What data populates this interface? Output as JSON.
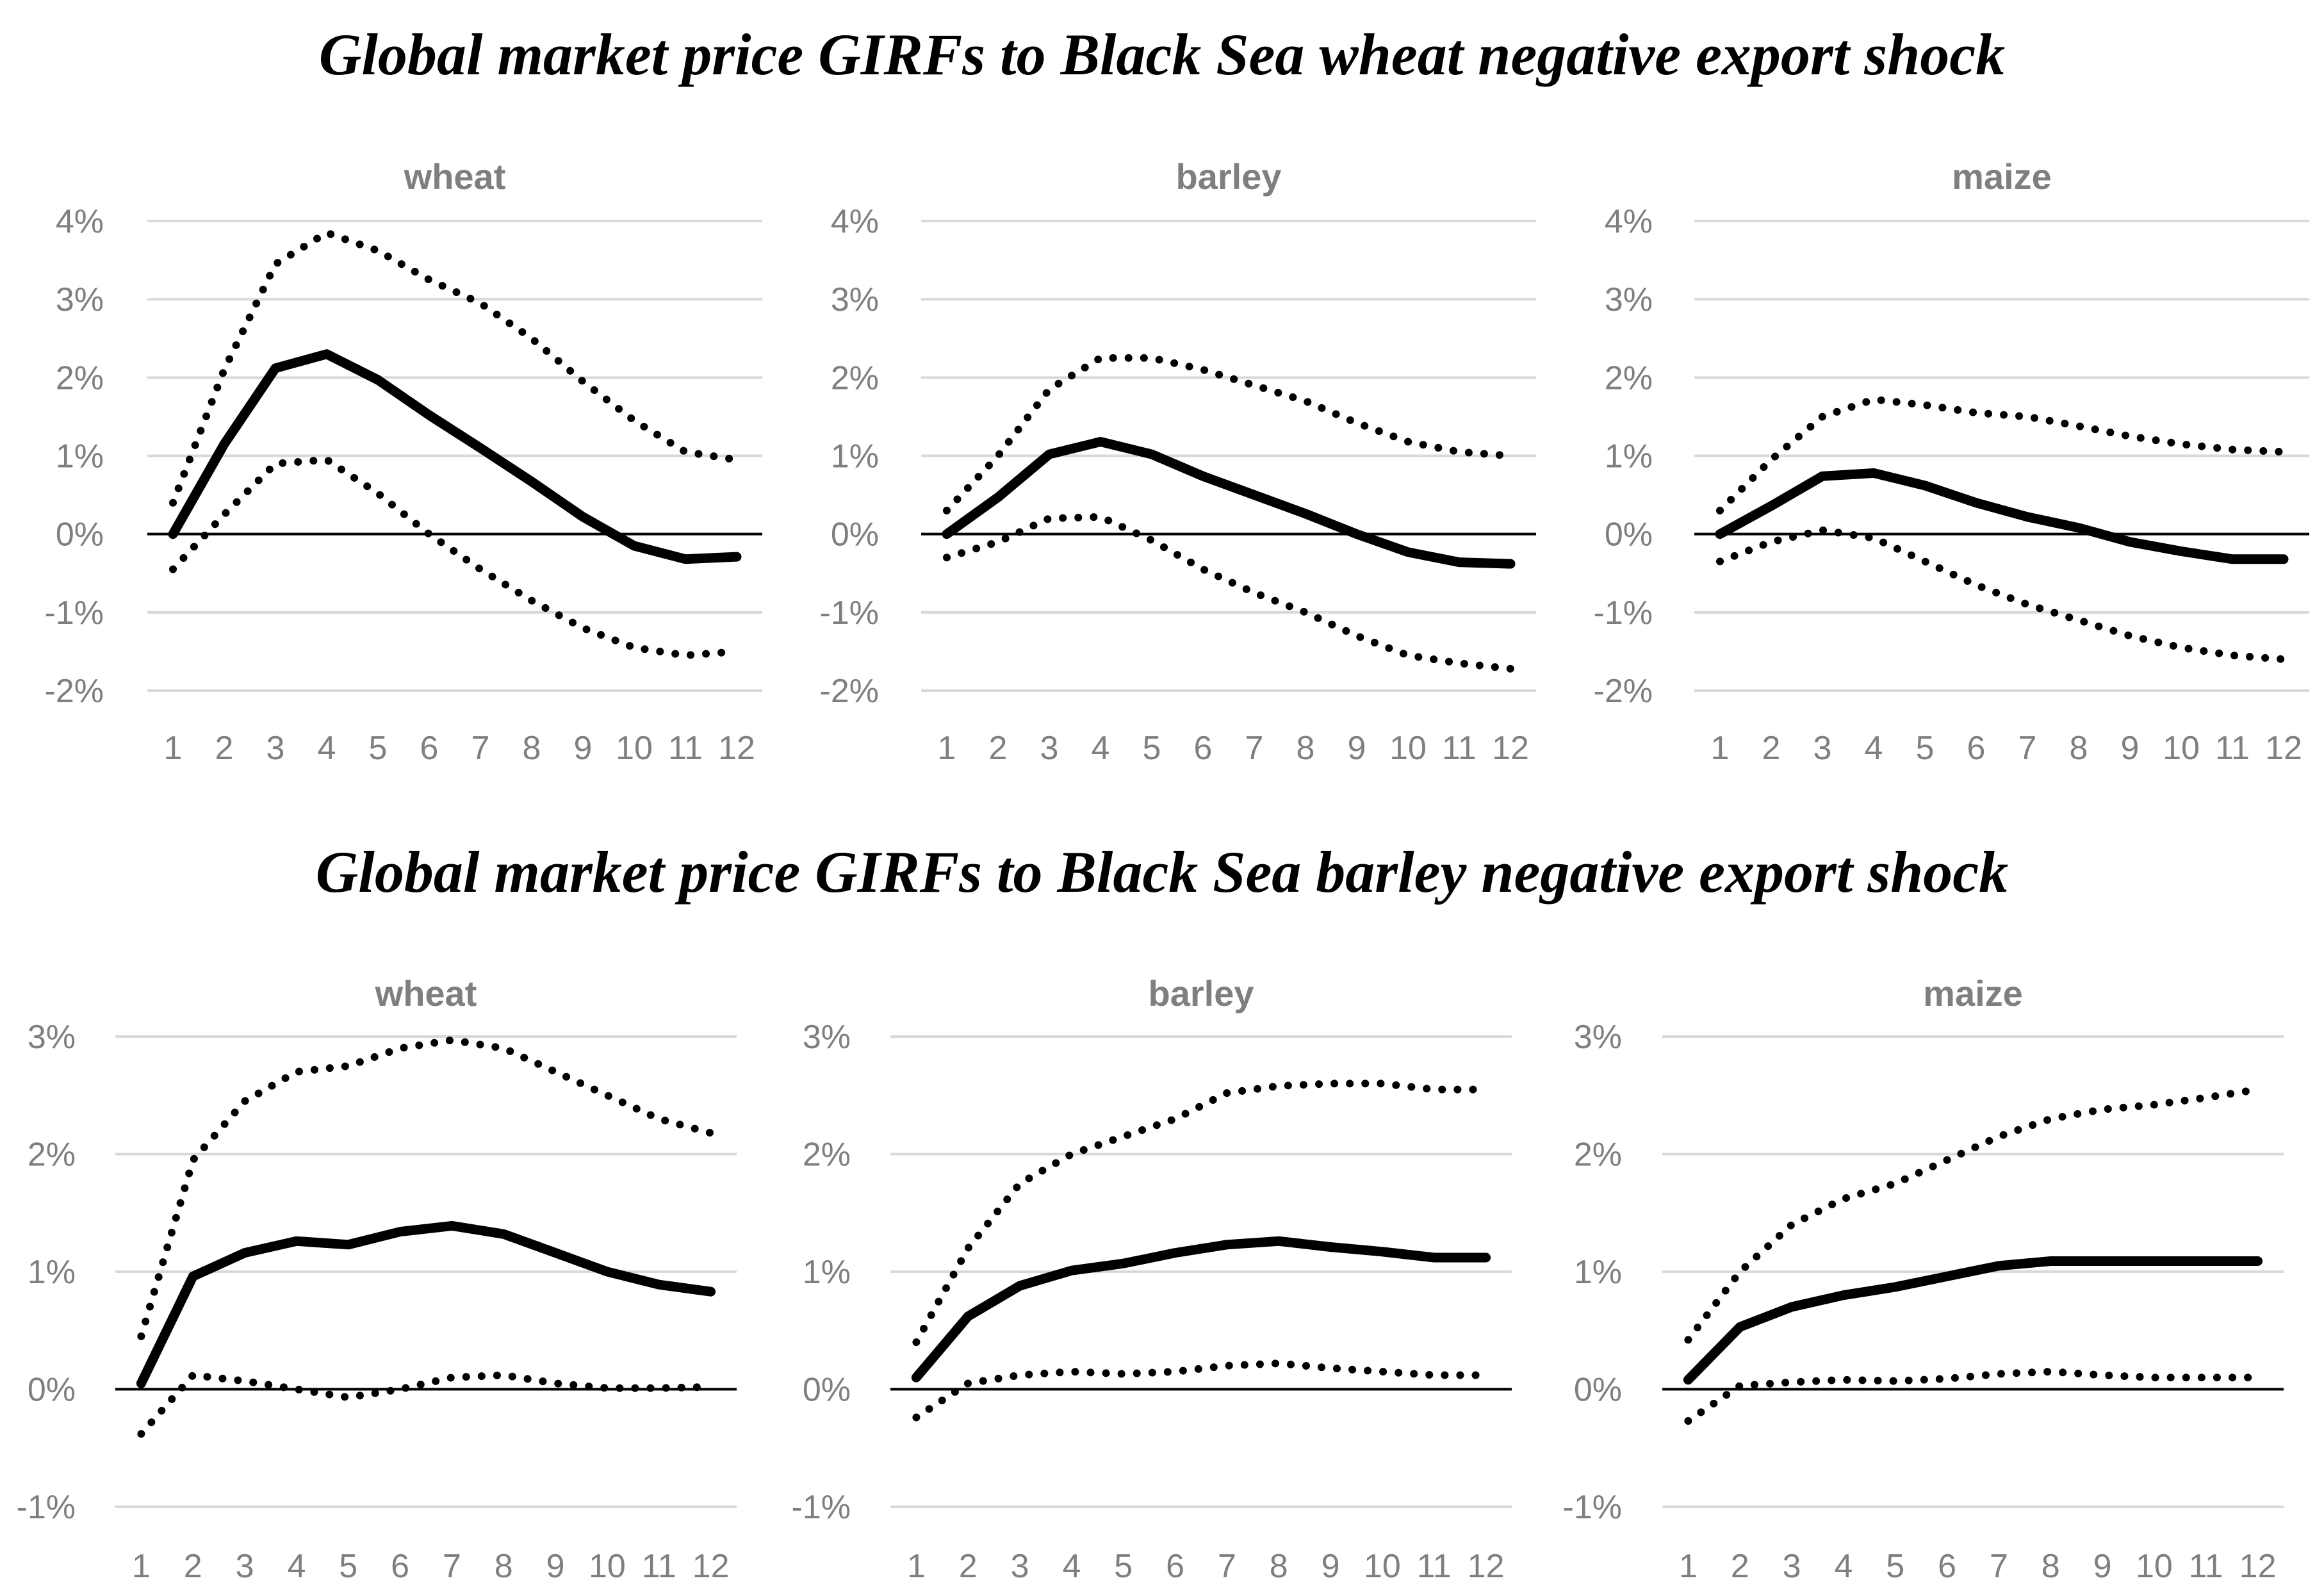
{
  "sections": [
    {
      "title_parts": [
        {
          "text": "Global market price GIRFs to Black Sea ",
          "bold": false
        },
        {
          "text": "wheat",
          "bold": true
        },
        {
          "text": " negative ",
          "bold": false
        },
        {
          "text": "export",
          "bold": true
        },
        {
          "text": " shock",
          "bold": false
        }
      ]
    },
    {
      "title_parts": [
        {
          "text": "Global market price GIRFs to Black Sea ",
          "bold": false
        },
        {
          "text": "barley",
          "bold": true
        },
        {
          "text": " negative ",
          "bold": false
        },
        {
          "text": "export",
          "bold": true
        },
        {
          "text": " shock",
          "bold": false
        }
      ]
    }
  ],
  "chart_data": [
    {
      "type": "line",
      "section": 0,
      "title": "wheat",
      "categories": [
        "1",
        "2",
        "3",
        "4",
        "5",
        "6",
        "7",
        "8",
        "9",
        "10",
        "11",
        "12"
      ],
      "ylim": [
        -2,
        4
      ],
      "yticks": [
        -2,
        -1,
        0,
        1,
        2,
        3,
        4
      ],
      "ytick_labels": [
        "-2%",
        "-1%",
        "0%",
        "1%",
        "2%",
        "3%",
        "4%"
      ],
      "series": [
        {
          "name": "GIRF",
          "style": "solid",
          "values": [
            0.0,
            1.15,
            2.12,
            2.3,
            1.97,
            1.52,
            1.1,
            0.67,
            0.22,
            -0.15,
            -0.32,
            -0.29
          ]
        },
        {
          "name": "Upper bound",
          "style": "dotted",
          "values": [
            0.4,
            2.1,
            3.45,
            3.85,
            3.62,
            3.25,
            2.95,
            2.5,
            1.95,
            1.45,
            1.05,
            0.95
          ]
        },
        {
          "name": "Lower bound",
          "style": "dotted",
          "values": [
            -0.45,
            0.25,
            0.9,
            0.95,
            0.52,
            0.0,
            -0.45,
            -0.85,
            -1.2,
            -1.45,
            -1.55,
            -1.5
          ]
        }
      ]
    },
    {
      "type": "line",
      "section": 0,
      "title": "barley",
      "categories": [
        "1",
        "2",
        "3",
        "4",
        "5",
        "6",
        "7",
        "8",
        "9",
        "10",
        "11",
        "12"
      ],
      "ylim": [
        -2,
        4
      ],
      "yticks": [
        -2,
        -1,
        0,
        1,
        2,
        3,
        4
      ],
      "ytick_labels": [
        "-2%",
        "-1%",
        "0%",
        "1%",
        "2%",
        "3%",
        "4%"
      ],
      "series": [
        {
          "name": "GIRF",
          "style": "solid",
          "values": [
            0.0,
            0.47,
            1.02,
            1.18,
            1.02,
            0.74,
            0.5,
            0.26,
            0.0,
            -0.23,
            -0.36,
            -0.38
          ]
        },
        {
          "name": "Upper bound",
          "style": "dotted",
          "values": [
            0.3,
            1.0,
            1.85,
            2.25,
            2.25,
            2.1,
            1.9,
            1.7,
            1.42,
            1.18,
            1.05,
            1.0
          ]
        },
        {
          "name": "Lower bound",
          "style": "dotted",
          "values": [
            -0.3,
            -0.1,
            0.2,
            0.22,
            -0.08,
            -0.45,
            -0.75,
            -1.0,
            -1.3,
            -1.55,
            -1.65,
            -1.72
          ]
        }
      ]
    },
    {
      "type": "line",
      "section": 0,
      "title": "maize",
      "categories": [
        "1",
        "2",
        "3",
        "4",
        "5",
        "6",
        "7",
        "8",
        "9",
        "10",
        "11",
        "12"
      ],
      "ylim": [
        -2,
        4
      ],
      "yticks": [
        -2,
        -1,
        0,
        1,
        2,
        3,
        4
      ],
      "ytick_labels": [
        "-2%",
        "-1%",
        "0%",
        "1%",
        "2%",
        "3%",
        "4%"
      ],
      "series": [
        {
          "name": "GIRF",
          "style": "solid",
          "values": [
            0.0,
            0.36,
            0.74,
            0.78,
            0.62,
            0.4,
            0.22,
            0.08,
            -0.1,
            -0.22,
            -0.32,
            -0.32
          ]
        },
        {
          "name": "Upper bound",
          "style": "dotted",
          "values": [
            0.3,
            0.95,
            1.5,
            1.72,
            1.65,
            1.55,
            1.5,
            1.38,
            1.25,
            1.15,
            1.08,
            1.05
          ]
        },
        {
          "name": "Lower bound",
          "style": "dotted",
          "values": [
            -0.35,
            -0.1,
            0.05,
            -0.05,
            -0.35,
            -0.65,
            -0.9,
            -1.1,
            -1.3,
            -1.45,
            -1.55,
            -1.6
          ]
        }
      ]
    },
    {
      "type": "line",
      "section": 1,
      "title": "wheat",
      "categories": [
        "1",
        "2",
        "3",
        "4",
        "5",
        "6",
        "7",
        "8",
        "9",
        "10",
        "11",
        "12"
      ],
      "ylim": [
        -1,
        3
      ],
      "yticks": [
        -1,
        0,
        1,
        2,
        3
      ],
      "ytick_labels": [
        "-1%",
        "0%",
        "1%",
        "2%",
        "3%"
      ],
      "series": [
        {
          "name": "GIRF",
          "style": "solid",
          "values": [
            0.05,
            0.96,
            1.16,
            1.26,
            1.23,
            1.34,
            1.39,
            1.32,
            1.16,
            1.0,
            0.89,
            0.83
          ]
        },
        {
          "name": "Upper bound",
          "style": "dotted",
          "values": [
            0.45,
            1.95,
            2.45,
            2.7,
            2.75,
            2.9,
            2.97,
            2.9,
            2.7,
            2.5,
            2.3,
            2.18
          ]
        },
        {
          "name": "Lower bound",
          "style": "dotted",
          "values": [
            -0.38,
            0.12,
            0.07,
            0.0,
            -0.07,
            0.0,
            0.1,
            0.12,
            0.05,
            0.01,
            0.01,
            0.02
          ]
        }
      ]
    },
    {
      "type": "line",
      "section": 1,
      "title": "barley",
      "categories": [
        "1",
        "2",
        "3",
        "4",
        "5",
        "6",
        "7",
        "8",
        "9",
        "10",
        "11",
        "12"
      ],
      "ylim": [
        -1,
        3
      ],
      "yticks": [
        -1,
        0,
        1,
        2,
        3
      ],
      "ytick_labels": [
        "-1%",
        "0%",
        "1%",
        "2%",
        "3%"
      ],
      "series": [
        {
          "name": "GIRF",
          "style": "solid",
          "values": [
            0.1,
            0.62,
            0.88,
            1.01,
            1.07,
            1.16,
            1.23,
            1.26,
            1.21,
            1.17,
            1.12,
            1.12
          ]
        },
        {
          "name": "Upper bound",
          "style": "dotted",
          "values": [
            0.4,
            1.2,
            1.75,
            2.0,
            2.15,
            2.3,
            2.52,
            2.58,
            2.6,
            2.6,
            2.55,
            2.55
          ]
        },
        {
          "name": "Lower bound",
          "style": "dotted",
          "values": [
            -0.24,
            0.05,
            0.12,
            0.15,
            0.13,
            0.15,
            0.2,
            0.22,
            0.18,
            0.15,
            0.12,
            0.12
          ]
        }
      ]
    },
    {
      "type": "line",
      "section": 1,
      "title": "maize",
      "categories": [
        "1",
        "2",
        "3",
        "4",
        "5",
        "6",
        "7",
        "8",
        "9",
        "10",
        "11",
        "12"
      ],
      "ylim": [
        -1,
        3
      ],
      "yticks": [
        -1,
        0,
        1,
        2,
        3
      ],
      "ytick_labels": [
        "-1%",
        "0%",
        "1%",
        "2%",
        "3%"
      ],
      "series": [
        {
          "name": "GIRF",
          "style": "solid",
          "values": [
            0.08,
            0.53,
            0.7,
            0.8,
            0.87,
            0.96,
            1.05,
            1.09,
            1.09,
            1.09,
            1.09,
            1.09
          ]
        },
        {
          "name": "Upper bound",
          "style": "dotted",
          "values": [
            0.42,
            1.0,
            1.4,
            1.62,
            1.75,
            1.95,
            2.15,
            2.3,
            2.38,
            2.42,
            2.48,
            2.55
          ]
        },
        {
          "name": "Lower bound",
          "style": "dotted",
          "values": [
            -0.27,
            0.03,
            0.06,
            0.08,
            0.07,
            0.09,
            0.13,
            0.15,
            0.12,
            0.1,
            0.1,
            0.1
          ]
        }
      ]
    }
  ]
}
